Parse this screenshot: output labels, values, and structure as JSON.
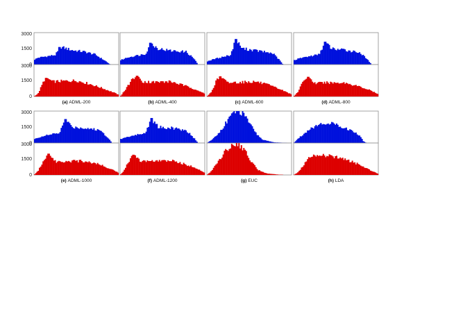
{
  "colors": {
    "top_series": "#0011dd",
    "bottom_series": "#dd0000"
  },
  "shared_axes": {
    "top_y_ticks": [
      "3000",
      "1500",
      "0"
    ],
    "bottom_y_ticks": [
      "3000",
      "1500",
      "0"
    ],
    "ylim": [
      0,
      3000
    ]
  },
  "chart_data": [
    {
      "type": "bar",
      "caption_label": "(a)",
      "caption_text": "ADML-200",
      "series": [
        {
          "peaks": [
            {
              "x": 0.3,
              "y": 1650
            }
          ],
          "shape": [
            [
              0,
              450
            ],
            [
              0.05,
              650
            ],
            [
              0.25,
              900
            ],
            [
              0.32,
              1650
            ],
            [
              0.45,
              1350
            ],
            [
              0.6,
              1200
            ],
            [
              0.72,
              950
            ],
            [
              0.85,
              300
            ],
            [
              0.9,
              0
            ]
          ]
        },
        {
          "peaks": [
            {
              "x": 0.14,
              "y": 1750
            }
          ],
          "shape": [
            [
              0,
              0
            ],
            [
              0.05,
              300
            ],
            [
              0.12,
              1550
            ],
            [
              0.16,
              1700
            ],
            [
              0.22,
              1400
            ],
            [
              0.35,
              1450
            ],
            [
              0.5,
              1500
            ],
            [
              0.65,
              1200
            ],
            [
              0.8,
              800
            ],
            [
              0.95,
              350
            ],
            [
              1.0,
              150
            ]
          ]
        }
      ]
    },
    {
      "type": "bar",
      "caption_label": "(b)",
      "caption_text": "ADML-400",
      "series": [
        {
          "peaks": [
            {
              "x": 0.36,
              "y": 2050
            }
          ],
          "shape": [
            [
              0,
              400
            ],
            [
              0.1,
              700
            ],
            [
              0.3,
              1000
            ],
            [
              0.36,
              2000
            ],
            [
              0.45,
              1500
            ],
            [
              0.6,
              1300
            ],
            [
              0.78,
              1200
            ],
            [
              0.88,
              500
            ],
            [
              0.92,
              0
            ]
          ]
        },
        {
          "peaks": [
            {
              "x": 0.2,
              "y": 1950
            }
          ],
          "shape": [
            [
              0,
              0
            ],
            [
              0.04,
              400
            ],
            [
              0.15,
              1700
            ],
            [
              0.2,
              1950
            ],
            [
              0.27,
              1400
            ],
            [
              0.4,
              1350
            ],
            [
              0.6,
              1400
            ],
            [
              0.75,
              1050
            ],
            [
              0.9,
              650
            ],
            [
              1.0,
              250
            ]
          ]
        }
      ]
    },
    {
      "type": "bar",
      "caption_label": "(c)",
      "caption_text": "ADML-600",
      "series": [
        {
          "peaks": [
            {
              "x": 0.34,
              "y": 2400
            }
          ],
          "shape": [
            [
              0,
              300
            ],
            [
              0.1,
              550
            ],
            [
              0.28,
              900
            ],
            [
              0.34,
              2350
            ],
            [
              0.42,
              1500
            ],
            [
              0.6,
              1300
            ],
            [
              0.78,
              1050
            ],
            [
              0.86,
              400
            ],
            [
              0.9,
              0
            ]
          ]
        },
        {
          "peaks": [
            {
              "x": 0.16,
              "y": 1900
            }
          ],
          "shape": [
            [
              0,
              0
            ],
            [
              0.05,
              400
            ],
            [
              0.12,
              1600
            ],
            [
              0.16,
              1900
            ],
            [
              0.24,
              1300
            ],
            [
              0.4,
              1350
            ],
            [
              0.58,
              1400
            ],
            [
              0.72,
              1100
            ],
            [
              0.86,
              700
            ],
            [
              1.0,
              200
            ]
          ]
        }
      ]
    },
    {
      "type": "bar",
      "caption_label": "(d)",
      "caption_text": "ADML-800",
      "series": [
        {
          "peaks": [
            {
              "x": 0.37,
              "y": 2150
            }
          ],
          "shape": [
            [
              0,
              400
            ],
            [
              0.1,
              650
            ],
            [
              0.3,
              950
            ],
            [
              0.37,
              2100
            ],
            [
              0.45,
              1500
            ],
            [
              0.62,
              1350
            ],
            [
              0.78,
              1150
            ],
            [
              0.88,
              400
            ],
            [
              0.92,
              0
            ]
          ]
        },
        {
          "peaks": [
            {
              "x": 0.17,
              "y": 1850
            }
          ],
          "shape": [
            [
              0,
              0
            ],
            [
              0.05,
              450
            ],
            [
              0.13,
              1650
            ],
            [
              0.17,
              1850
            ],
            [
              0.25,
              1250
            ],
            [
              0.4,
              1300
            ],
            [
              0.6,
              1300
            ],
            [
              0.75,
              1000
            ],
            [
              0.9,
              600
            ],
            [
              1.0,
              200
            ]
          ]
        }
      ]
    },
    {
      "type": "bar",
      "caption_label": "(e)",
      "caption_text": "ADML-1000",
      "series": [
        {
          "peaks": [
            {
              "x": 0.37,
              "y": 2250
            }
          ],
          "shape": [
            [
              0,
              350
            ],
            [
              0.1,
              650
            ],
            [
              0.3,
              950
            ],
            [
              0.37,
              2200
            ],
            [
              0.45,
              1500
            ],
            [
              0.62,
              1400
            ],
            [
              0.78,
              1200
            ],
            [
              0.88,
              450
            ],
            [
              0.92,
              0
            ]
          ]
        },
        {
          "peaks": [
            {
              "x": 0.18,
              "y": 2000
            }
          ],
          "shape": [
            [
              0,
              0
            ],
            [
              0.05,
              400
            ],
            [
              0.14,
              1750
            ],
            [
              0.18,
              2000
            ],
            [
              0.26,
              1250
            ],
            [
              0.4,
              1300
            ],
            [
              0.6,
              1300
            ],
            [
              0.75,
              1050
            ],
            [
              0.9,
              600
            ],
            [
              1.0,
              200
            ]
          ]
        }
      ]
    },
    {
      "type": "bar",
      "caption_label": "(f)",
      "caption_text": "ADML-1200",
      "series": [
        {
          "peaks": [
            {
              "x": 0.37,
              "y": 2350
            }
          ],
          "shape": [
            [
              0,
              350
            ],
            [
              0.1,
              600
            ],
            [
              0.3,
              950
            ],
            [
              0.37,
              2300
            ],
            [
              0.45,
              1500
            ],
            [
              0.62,
              1400
            ],
            [
              0.78,
              1200
            ],
            [
              0.88,
              400
            ],
            [
              0.92,
              0
            ]
          ]
        },
        {
          "peaks": [
            {
              "x": 0.16,
              "y": 1900
            }
          ],
          "shape": [
            [
              0,
              0
            ],
            [
              0.05,
              450
            ],
            [
              0.13,
              1700
            ],
            [
              0.16,
              1900
            ],
            [
              0.24,
              1300
            ],
            [
              0.4,
              1300
            ],
            [
              0.6,
              1350
            ],
            [
              0.75,
              1050
            ],
            [
              0.9,
              650
            ],
            [
              1.0,
              200
            ]
          ]
        }
      ]
    },
    {
      "type": "bar",
      "caption_label": "(g)",
      "caption_text": "EUC",
      "series": [
        {
          "peaks": [],
          "shape": [
            [
              0,
              0
            ],
            [
              0.05,
              250
            ],
            [
              0.15,
              1000
            ],
            [
              0.25,
              2200
            ],
            [
              0.32,
              2900
            ],
            [
              0.36,
              3050
            ],
            [
              0.42,
              2800
            ],
            [
              0.5,
              1900
            ],
            [
              0.58,
              900
            ],
            [
              0.66,
              300
            ],
            [
              0.8,
              60
            ],
            [
              1.0,
              0
            ]
          ]
        },
        {
          "peaks": [],
          "shape": [
            [
              0,
              0
            ],
            [
              0.06,
              400
            ],
            [
              0.15,
              1500
            ],
            [
              0.25,
              2500
            ],
            [
              0.32,
              2900
            ],
            [
              0.38,
              2850
            ],
            [
              0.45,
              2300
            ],
            [
              0.52,
              1300
            ],
            [
              0.6,
              500
            ],
            [
              0.7,
              150
            ],
            [
              0.85,
              30
            ],
            [
              1.0,
              0
            ]
          ]
        }
      ]
    },
    {
      "type": "bar",
      "caption_label": "(h)",
      "caption_text": "LDA",
      "series": [
        {
          "peaks": [],
          "shape": [
            [
              0,
              0
            ],
            [
              0.05,
              400
            ],
            [
              0.2,
              1400
            ],
            [
              0.35,
              1850
            ],
            [
              0.42,
              1900
            ],
            [
              0.55,
              1600
            ],
            [
              0.7,
              1100
            ],
            [
              0.78,
              700
            ],
            [
              0.82,
              200
            ],
            [
              0.86,
              0
            ],
            [
              1.0,
              0
            ]
          ]
        },
        {
          "peaks": [],
          "shape": [
            [
              0,
              0
            ],
            [
              0.06,
              300
            ],
            [
              0.15,
              1300
            ],
            [
              0.22,
              1900
            ],
            [
              0.3,
              1850
            ],
            [
              0.45,
              1750
            ],
            [
              0.6,
              1500
            ],
            [
              0.75,
              1050
            ],
            [
              0.88,
              550
            ],
            [
              0.96,
              250
            ],
            [
              1.0,
              100
            ]
          ]
        }
      ]
    }
  ]
}
